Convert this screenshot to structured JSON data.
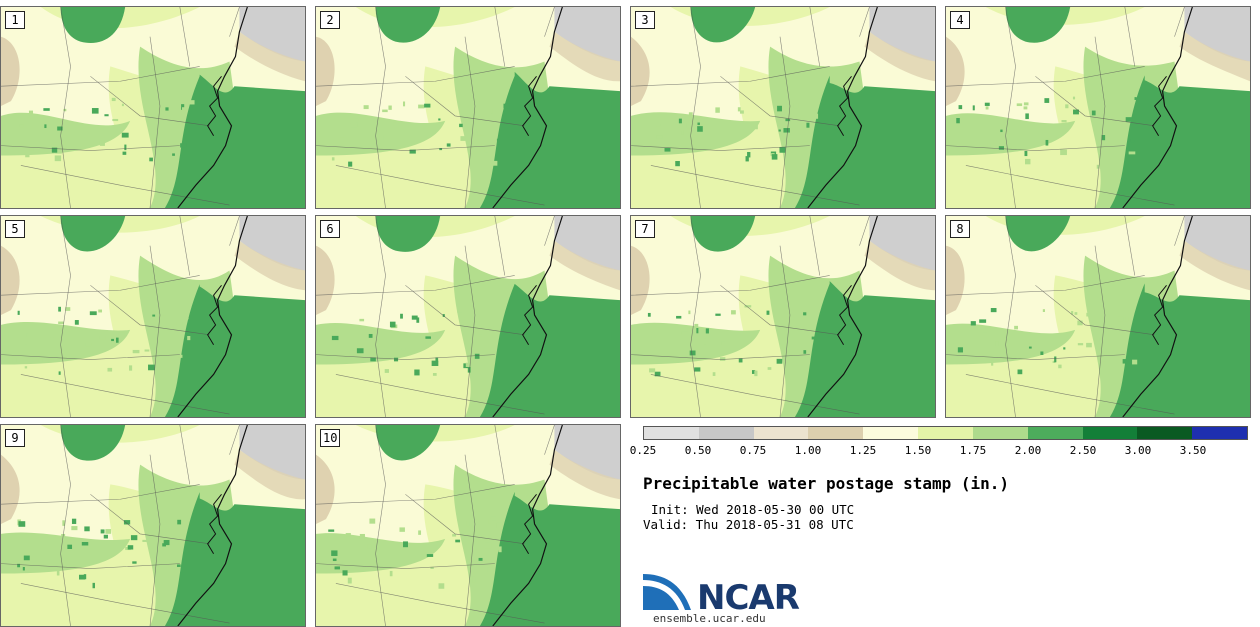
{
  "panels": [
    {
      "label": "1"
    },
    {
      "label": "2"
    },
    {
      "label": "3"
    },
    {
      "label": "4"
    },
    {
      "label": "5"
    },
    {
      "label": "6"
    },
    {
      "label": "7"
    },
    {
      "label": "8"
    },
    {
      "label": "9"
    },
    {
      "label": "10"
    }
  ],
  "legend": {
    "levels": [
      "0.25",
      "0.50",
      "0.75",
      "1.00",
      "1.25",
      "1.50",
      "1.75",
      "2.00",
      "2.50",
      "3.00",
      "3.50"
    ],
    "colors": [
      "#e0e0e0",
      "#c7c7c7",
      "#ece3cf",
      "#dccfae",
      "#fbfbdd",
      "#e4f4a8",
      "#aedb8c",
      "#4dac5c",
      "#137f38",
      "#0a5a22",
      "#1e2fb0"
    ]
  },
  "colors": {
    "veryLight": "#fafbd6",
    "light": "#e7f5ac",
    "medium": "#b3de8d",
    "dark": "#49a95a",
    "tan": "#dfd2b0",
    "gray": "#cfcfcf",
    "darkGreen": "#167f3a"
  },
  "title": "Precipitable water postage stamp (in.)",
  "init": "Init: Wed 2018-05-30 00 UTC",
  "valid": "Valid: Thu 2018-05-31 08 UTC",
  "logo": {
    "name": "NCAR",
    "url": "ensemble.ucar.edu"
  }
}
